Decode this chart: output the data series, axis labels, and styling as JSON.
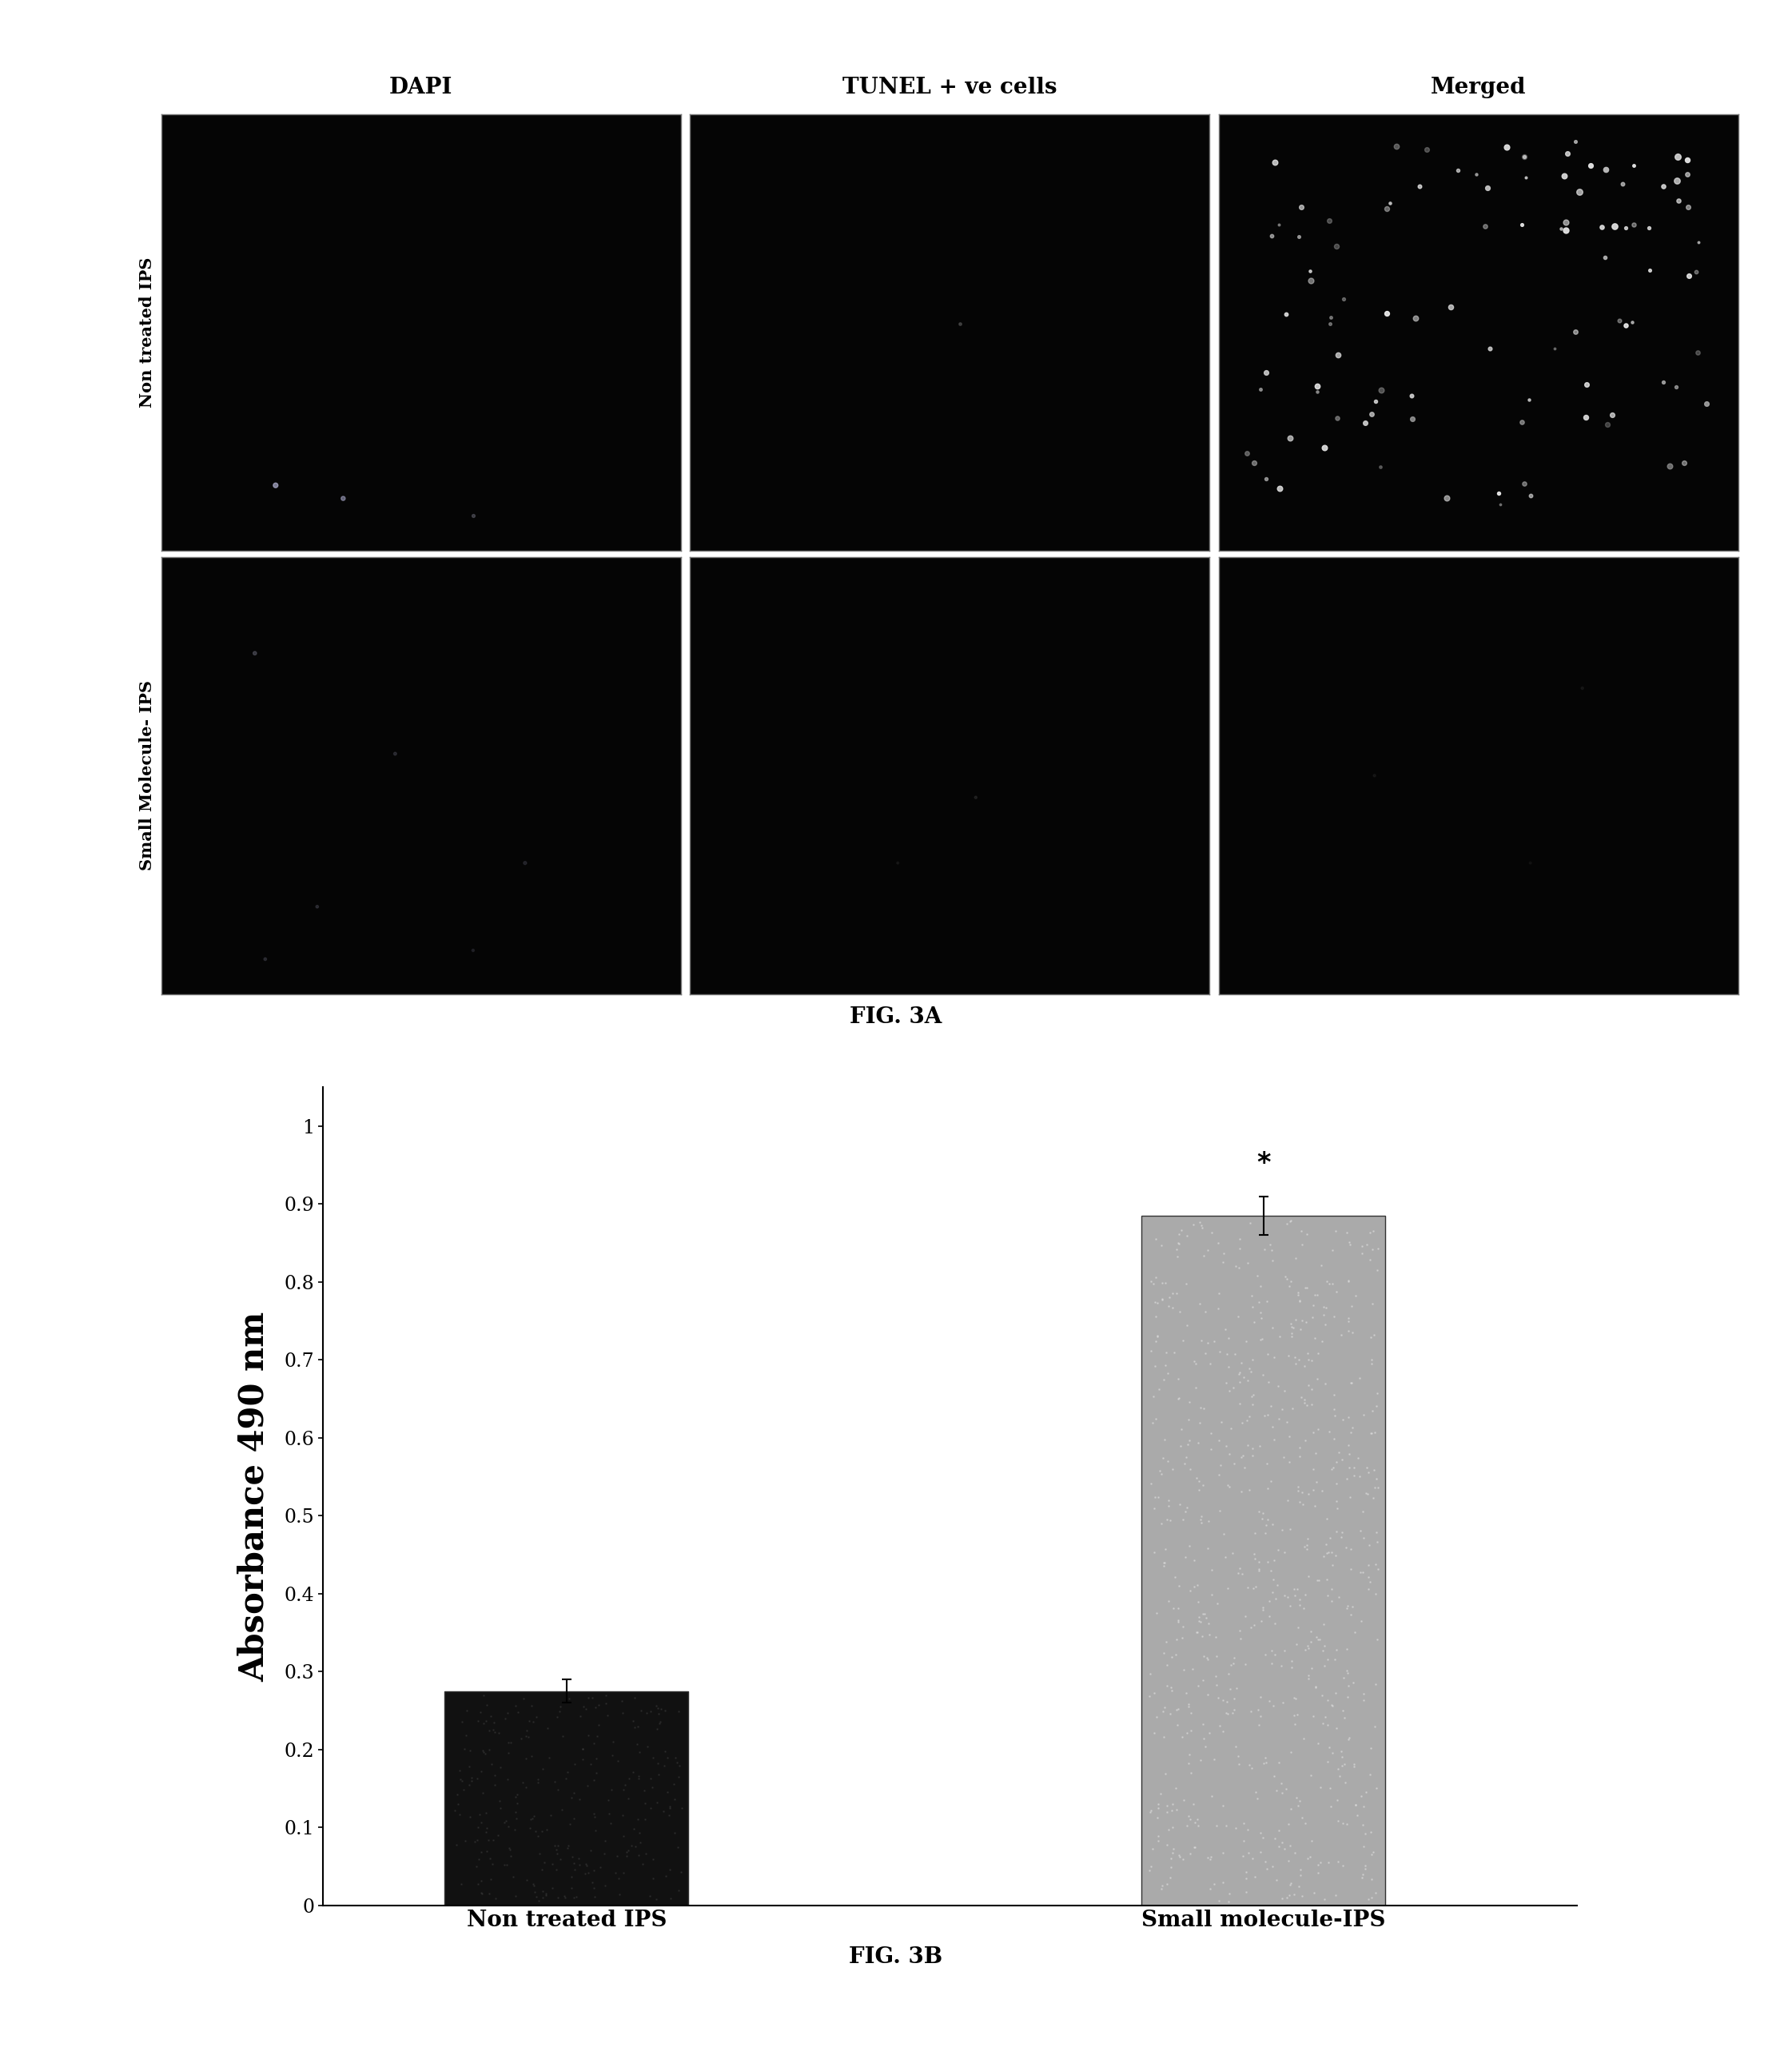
{
  "fig3a_title": "FIG. 3A",
  "fig3b_title": "FIG. 3B",
  "col_headers": [
    "DAPI",
    "TUNEL + ve cells",
    "Merged"
  ],
  "row_labels": [
    "Non treated IPS",
    "Small Molecule- IPS"
  ],
  "bar_categories": [
    "Non treated IPS",
    "Small molecule-IPS"
  ],
  "bar_values": [
    0.275,
    0.885
  ],
  "bar_errors": [
    0.015,
    0.025
  ],
  "bar_colors": [
    "#111111",
    "#aaaaaa"
  ],
  "ylabel": "Absorbance 490 nm",
  "yticks": [
    0,
    0.1,
    0.2,
    0.3,
    0.4,
    0.5,
    0.6,
    0.7,
    0.8,
    0.9,
    1
  ],
  "ylim": [
    0,
    1.05
  ],
  "asterisk_text": "*",
  "background_color": "#ffffff",
  "image_background": "#050505"
}
